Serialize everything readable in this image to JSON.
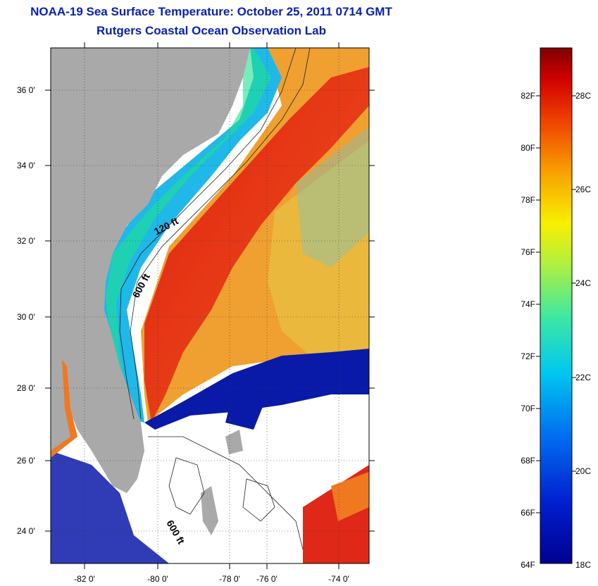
{
  "title": {
    "line1": "NOAA-19 Sea Surface Temperature:  October 25, 2011 0714 GMT",
    "line2": "Rutgers Coastal Ocean Observation Lab"
  },
  "map": {
    "lat_ticks": [
      "36 0'",
      "34 0'",
      "32 0'",
      "30 0'",
      "28 0'",
      "26 0'",
      "24 0'"
    ],
    "lon_ticks": [
      "-82 0'",
      "-80 0'",
      "-78 0'",
      "-76 0'",
      "-74 0'"
    ],
    "contour_labels": [
      "120 ft",
      "600 ft",
      "600 ft"
    ],
    "colors": {
      "land": "#a9a9a9",
      "cloud": "#ffffff",
      "cold_water": "#0a1aa8",
      "warm_water": "#e8301a",
      "shelf_water": "#20b8e8"
    }
  },
  "colorbar": {
    "fahrenheit_labels": [
      "82F",
      "80F",
      "78F",
      "76F",
      "74F",
      "72F",
      "70F",
      "68F",
      "66F",
      "64F"
    ],
    "celsius_labels": [
      "28C",
      "26C",
      "24C",
      "22C",
      "20C",
      "18C"
    ],
    "range_f": [
      64,
      84.2
    ],
    "range_c": [
      18,
      29
    ]
  }
}
